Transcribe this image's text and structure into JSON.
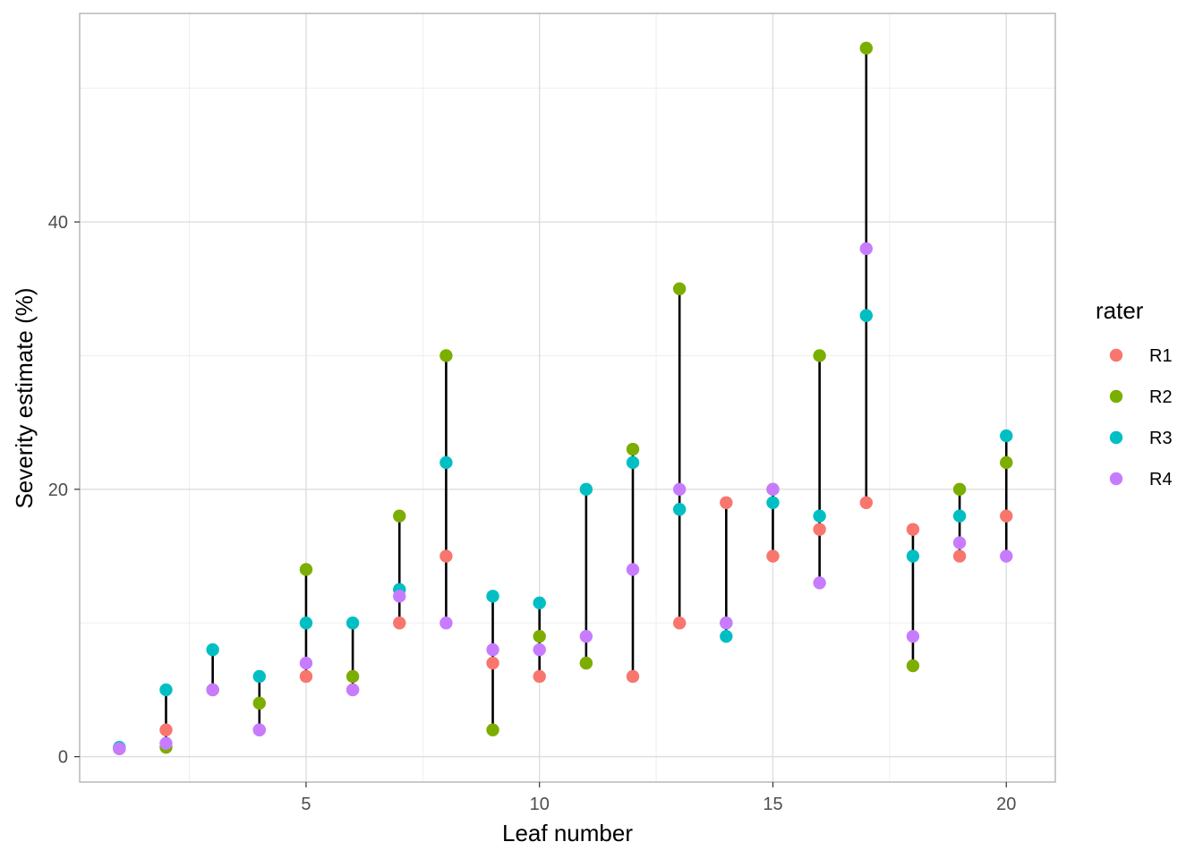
{
  "chart_data": {
    "type": "scatter",
    "xlabel": "Leaf number",
    "ylabel": "Severity estimate (%)",
    "xlim": [
      0.15,
      21.05
    ],
    "ylim": [
      -1.9,
      55.6
    ],
    "xticks": [
      5,
      10,
      15,
      20
    ],
    "xtick_labels": [
      "5",
      "10",
      "15",
      "20"
    ],
    "yticks": [
      0,
      20,
      40
    ],
    "ytick_labels": [
      "0",
      "20",
      "40"
    ],
    "grid": true,
    "legend": {
      "title": "rater",
      "position": "right"
    },
    "x": [
      1,
      2,
      3,
      4,
      5,
      6,
      7,
      8,
      9,
      10,
      11,
      12,
      13,
      14,
      15,
      16,
      17,
      18,
      19,
      20
    ],
    "series": [
      {
        "name": "R1",
        "color": "#F8766D",
        "values": [
          0.6,
          2,
          5,
          2,
          6,
          5,
          10,
          15,
          7,
          6,
          7,
          6,
          10,
          19,
          15,
          17,
          19,
          17,
          15,
          18
        ]
      },
      {
        "name": "R2",
        "color": "#7CAE00",
        "values": [
          0.6,
          0.7,
          5,
          4,
          14,
          6,
          18,
          30,
          2,
          9,
          7,
          23,
          35,
          10,
          20,
          30,
          53,
          6.8,
          20,
          22
        ]
      },
      {
        "name": "R3",
        "color": "#00BFC4",
        "values": [
          0.7,
          5,
          8,
          6,
          10,
          10,
          12.5,
          22,
          12,
          11.5,
          20,
          22,
          18.5,
          9,
          19,
          18,
          33,
          15,
          18,
          24
        ]
      },
      {
        "name": "R4",
        "color": "#C77CFF",
        "values": [
          0.6,
          1,
          5,
          2,
          7,
          5,
          12,
          10,
          8,
          8,
          9,
          14,
          20,
          10,
          20,
          13,
          38,
          9,
          16,
          15
        ]
      }
    ]
  }
}
